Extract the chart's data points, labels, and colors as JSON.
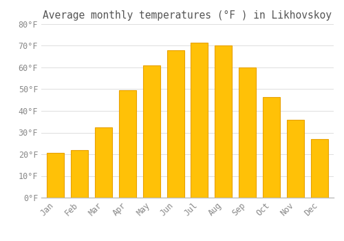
{
  "title": "Average monthly temperatures (°F ) in Likhovskoy",
  "months": [
    "Jan",
    "Feb",
    "Mar",
    "Apr",
    "May",
    "Jun",
    "Jul",
    "Aug",
    "Sep",
    "Oct",
    "Nov",
    "Dec"
  ],
  "values": [
    20.5,
    22,
    32.5,
    49.5,
    61,
    68,
    71.5,
    70,
    60,
    46.5,
    36,
    27
  ],
  "bar_color": "#FFC107",
  "bar_edge_color": "#E8A000",
  "background_color": "#FFFFFF",
  "grid_color": "#DDDDDD",
  "tick_label_color": "#888888",
  "title_color": "#555555",
  "ylim": [
    0,
    80
  ],
  "yticks": [
    0,
    10,
    20,
    30,
    40,
    50,
    60,
    70,
    80
  ],
  "title_fontsize": 10.5,
  "tick_fontsize": 8.5,
  "bar_width": 0.72
}
